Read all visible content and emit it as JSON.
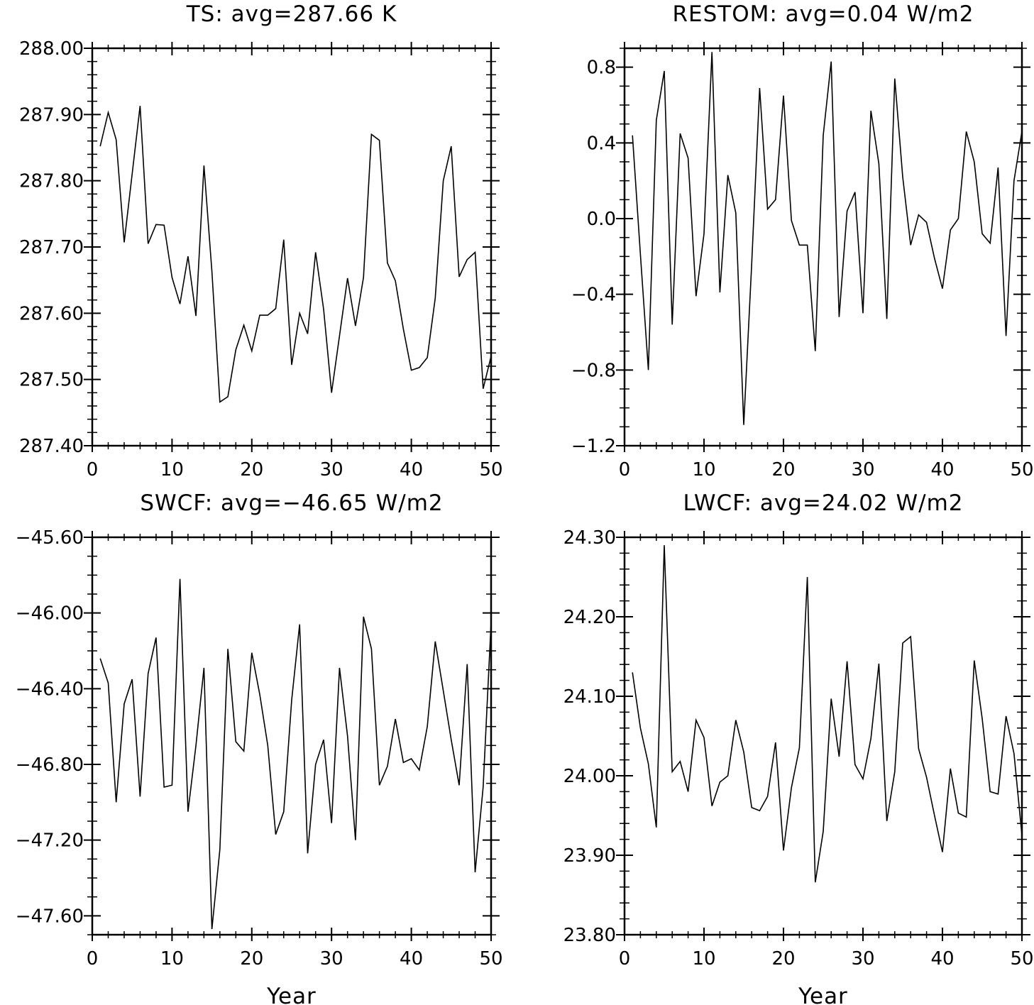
{
  "chart_data": [
    {
      "type": "line",
      "title": "TS: avg=287.66 K",
      "xlabel": "",
      "ylabel": "",
      "xlim": [
        0,
        50
      ],
      "ylim": [
        287.4,
        288.0
      ],
      "xticks": [
        0,
        10,
        20,
        30,
        40,
        50
      ],
      "xtick_labels": [
        "0",
        "10",
        "20",
        "30",
        "40",
        "50"
      ],
      "yticks": [
        287.4,
        287.5,
        287.6,
        287.7,
        287.8,
        287.9,
        288.0
      ],
      "ytick_labels": [
        "287.40",
        "287.50",
        "287.60",
        "287.70",
        "287.80",
        "287.90",
        "288.00"
      ],
      "yminor_step": 0.02,
      "grid": false,
      "legend": "none",
      "x": [
        1,
        2,
        3,
        4,
        5,
        6,
        7,
        8,
        9,
        10,
        11,
        12,
        13,
        14,
        15,
        16,
        17,
        18,
        19,
        20,
        21,
        22,
        23,
        24,
        25,
        26,
        27,
        28,
        29,
        30,
        31,
        32,
        33,
        34,
        35,
        36,
        37,
        38,
        39,
        40,
        41,
        42,
        43,
        44,
        45,
        46,
        47,
        48,
        49,
        50
      ],
      "series": [
        {
          "values": [
            287.852,
            287.903,
            287.862,
            287.707,
            287.81,
            287.913,
            287.705,
            287.734,
            287.733,
            287.654,
            287.614,
            287.686,
            287.596,
            287.823,
            287.663,
            287.466,
            287.474,
            287.545,
            287.582,
            287.543,
            287.597,
            287.597,
            287.607,
            287.711,
            287.522,
            287.6,
            287.569,
            287.692,
            287.606,
            287.48,
            287.566,
            287.653,
            287.581,
            287.654,
            287.87,
            287.861,
            287.676,
            287.649,
            287.576,
            287.514,
            287.518,
            287.533,
            287.623,
            287.8,
            287.852,
            287.655,
            287.681,
            287.692,
            287.486,
            287.535
          ]
        }
      ]
    },
    {
      "type": "line",
      "title": "RESTOM: avg=0.04 W/m2",
      "xlabel": "",
      "ylabel": "",
      "xlim": [
        0,
        50
      ],
      "ylim": [
        -1.2,
        0.9
      ],
      "xticks": [
        0,
        10,
        20,
        30,
        40,
        50
      ],
      "xtick_labels": [
        "0",
        "10",
        "20",
        "30",
        "40",
        "50"
      ],
      "yticks": [
        -1.2,
        -0.8,
        -0.4,
        0.0,
        0.4,
        0.8
      ],
      "ytick_labels": [
        "−1.2",
        "−0.8",
        "−0.4",
        "0.0",
        "0.4",
        "0.8"
      ],
      "yminor_step": 0.1,
      "grid": false,
      "legend": "none",
      "x": [
        1,
        2,
        3,
        4,
        5,
        6,
        7,
        8,
        9,
        10,
        11,
        12,
        13,
        14,
        15,
        16,
        17,
        18,
        19,
        20,
        21,
        22,
        23,
        24,
        25,
        26,
        27,
        28,
        29,
        30,
        31,
        32,
        33,
        34,
        35,
        36,
        37,
        38,
        39,
        40,
        41,
        42,
        43,
        44,
        45,
        46,
        47,
        48,
        49,
        50
      ],
      "series": [
        {
          "values": [
            0.44,
            -0.19,
            -0.8,
            0.52,
            0.78,
            -0.56,
            0.45,
            0.32,
            -0.41,
            -0.08,
            0.88,
            -0.39,
            0.23,
            0.03,
            -1.09,
            -0.24,
            0.69,
            0.05,
            0.1,
            0.65,
            -0.01,
            -0.14,
            -0.14,
            -0.7,
            0.44,
            0.83,
            -0.52,
            0.04,
            0.14,
            -0.5,
            0.57,
            0.29,
            -0.53,
            0.74,
            0.22,
            -0.14,
            0.02,
            -0.02,
            -0.21,
            -0.37,
            -0.06,
            0.0,
            0.46,
            0.3,
            -0.08,
            -0.13,
            0.27,
            -0.62,
            0.2,
            0.46
          ]
        }
      ]
    },
    {
      "type": "line",
      "title": "SWCF: avg=−46.65 W/m2",
      "xlabel": "Year",
      "ylabel": "",
      "xlim": [
        0,
        50
      ],
      "ylim": [
        -47.7,
        -45.6
      ],
      "xticks": [
        0,
        10,
        20,
        30,
        40,
        50
      ],
      "xtick_labels": [
        "0",
        "10",
        "20",
        "30",
        "40",
        "50"
      ],
      "yticks": [
        -47.6,
        -47.2,
        -46.8,
        -46.4,
        -46.0,
        -45.6
      ],
      "ytick_labels": [
        "−47.60",
        "−47.20",
        "−46.80",
        "−46.40",
        "−46.00",
        "−45.60"
      ],
      "yminor_step": 0.1,
      "grid": false,
      "legend": "none",
      "x": [
        1,
        2,
        3,
        4,
        5,
        6,
        7,
        8,
        9,
        10,
        11,
        12,
        13,
        14,
        15,
        16,
        17,
        18,
        19,
        20,
        21,
        22,
        23,
        24,
        25,
        26,
        27,
        28,
        29,
        30,
        31,
        32,
        33,
        34,
        35,
        36,
        37,
        38,
        39,
        40,
        41,
        42,
        43,
        44,
        45,
        46,
        47,
        48,
        49,
        50
      ],
      "series": [
        {
          "values": [
            -46.24,
            -46.37,
            -47.0,
            -46.48,
            -46.35,
            -46.97,
            -46.32,
            -46.13,
            -46.92,
            -46.91,
            -45.82,
            -47.05,
            -46.7,
            -46.29,
            -47.67,
            -47.25,
            -46.19,
            -46.68,
            -46.73,
            -46.21,
            -46.43,
            -46.7,
            -47.17,
            -47.05,
            -46.46,
            -46.06,
            -47.27,
            -46.8,
            -46.67,
            -47.11,
            -46.29,
            -46.65,
            -47.2,
            -46.02,
            -46.19,
            -46.91,
            -46.81,
            -46.56,
            -46.79,
            -46.77,
            -46.83,
            -46.6,
            -46.15,
            -46.41,
            -46.67,
            -46.91,
            -46.27,
            -47.37,
            -46.92,
            -46.05
          ]
        }
      ]
    },
    {
      "type": "line",
      "title": "LWCF: avg=24.02 W/m2",
      "xlabel": "Year",
      "ylabel": "",
      "xlim": [
        0,
        50
      ],
      "ylim": [
        23.8,
        24.3
      ],
      "xticks": [
        0,
        10,
        20,
        30,
        40,
        50
      ],
      "xtick_labels": [
        "0",
        "10",
        "20",
        "30",
        "40",
        "50"
      ],
      "yticks": [
        23.8,
        23.9,
        24.0,
        24.1,
        24.2,
        24.3
      ],
      "ytick_labels": [
        "23.80",
        "23.90",
        "24.00",
        "24.10",
        "24.20",
        "24.30"
      ],
      "yminor_step": 0.02,
      "grid": false,
      "legend": "none",
      "x": [
        1,
        2,
        3,
        4,
        5,
        6,
        7,
        8,
        9,
        10,
        11,
        12,
        13,
        14,
        15,
        16,
        17,
        18,
        19,
        20,
        21,
        22,
        23,
        24,
        25,
        26,
        27,
        28,
        29,
        30,
        31,
        32,
        33,
        34,
        35,
        36,
        37,
        38,
        39,
        40,
        41,
        42,
        43,
        44,
        45,
        46,
        47,
        48,
        49,
        50
      ],
      "series": [
        {
          "values": [
            24.13,
            24.06,
            24.015,
            23.935,
            24.29,
            24.005,
            24.018,
            23.98,
            24.07,
            24.048,
            23.962,
            23.992,
            24.0,
            24.07,
            24.03,
            23.96,
            23.956,
            23.974,
            24.042,
            23.906,
            23.985,
            24.035,
            24.25,
            23.866,
            23.93,
            24.097,
            24.024,
            24.144,
            24.014,
            23.996,
            24.047,
            24.141,
            23.943,
            24.005,
            24.167,
            24.175,
            24.034,
            23.998,
            23.95,
            23.904,
            24.009,
            23.953,
            23.948,
            24.145,
            24.072,
            23.98,
            23.977,
            24.075,
            24.028,
            23.925
          ]
        }
      ]
    }
  ]
}
